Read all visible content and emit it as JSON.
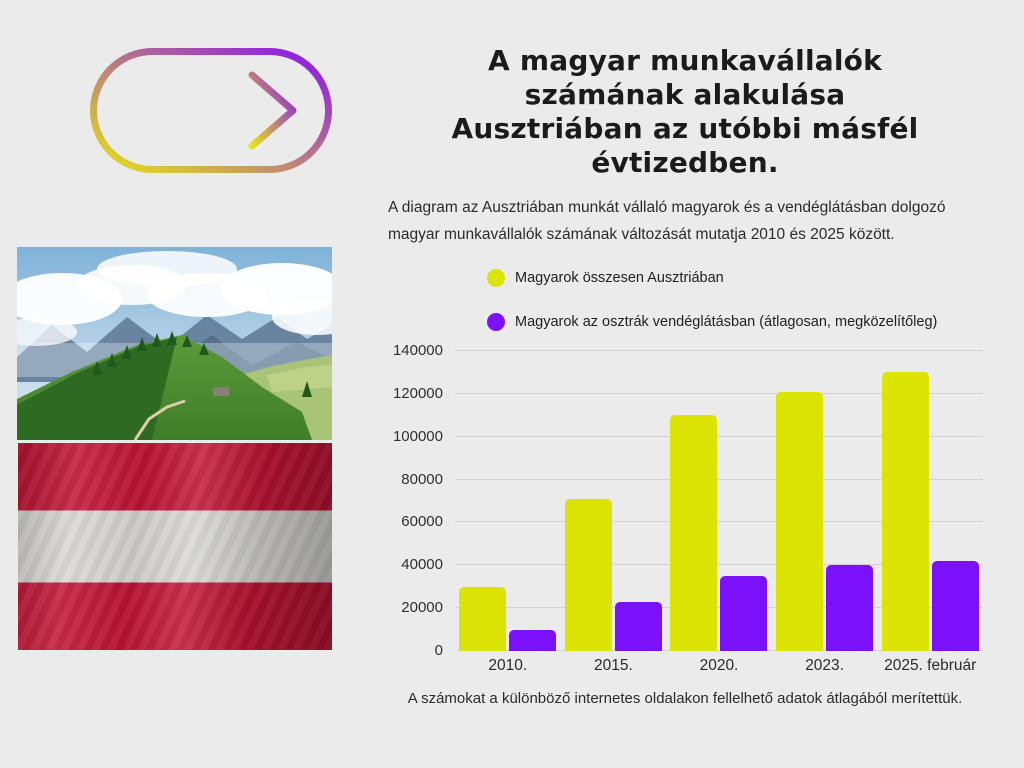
{
  "page": {
    "background": "#ebebeb"
  },
  "header": {
    "title_lines": [
      "A magyar munkavállalók",
      "számának alakulása",
      "Ausztriában az utóbbi másfél",
      "évtizedben."
    ],
    "subtitle": "A diagram az Ausztriában munkát vállaló magyarok és a vendéglátásban dolgozó magyar munkavállalók számának változását mutatja 2010 és 2025 között."
  },
  "icons": {
    "arrow_badge": "right-arrow-in-pill",
    "arrow_gradient_start": "#e8e217",
    "arrow_gradient_end": "#8912f0"
  },
  "images": {
    "mountain_photo": "alpine-mountain-landscape",
    "flag_photo": "austrian-flag-fabric"
  },
  "chart_data": {
    "type": "bar",
    "categories": [
      "2010.",
      "2015.",
      "2020.",
      "2023.",
      "2025. február"
    ],
    "series": [
      {
        "name": "Magyarok összesen Ausztriában",
        "color": "#dbe405",
        "values": [
          30000,
          71000,
          110000,
          121000,
          130000
        ]
      },
      {
        "name": "Magyarok az osztrák vendéglátásban (átlagosan, megközelítőleg)",
        "color": "#7b11fb",
        "values": [
          10000,
          23000,
          35000,
          40000,
          42000
        ]
      }
    ],
    "title": "",
    "xlabel": "",
    "ylabel": "",
    "ylim": [
      0,
      140000
    ],
    "ytick_step": 20000,
    "yticks": [
      0,
      20000,
      40000,
      60000,
      80000,
      100000,
      120000,
      140000
    ],
    "grid": true,
    "legend_position": "top-left"
  },
  "footer": {
    "note": "A számokat a különböző internetes oldalakon fellelhető adatok átlagából merítettük."
  }
}
